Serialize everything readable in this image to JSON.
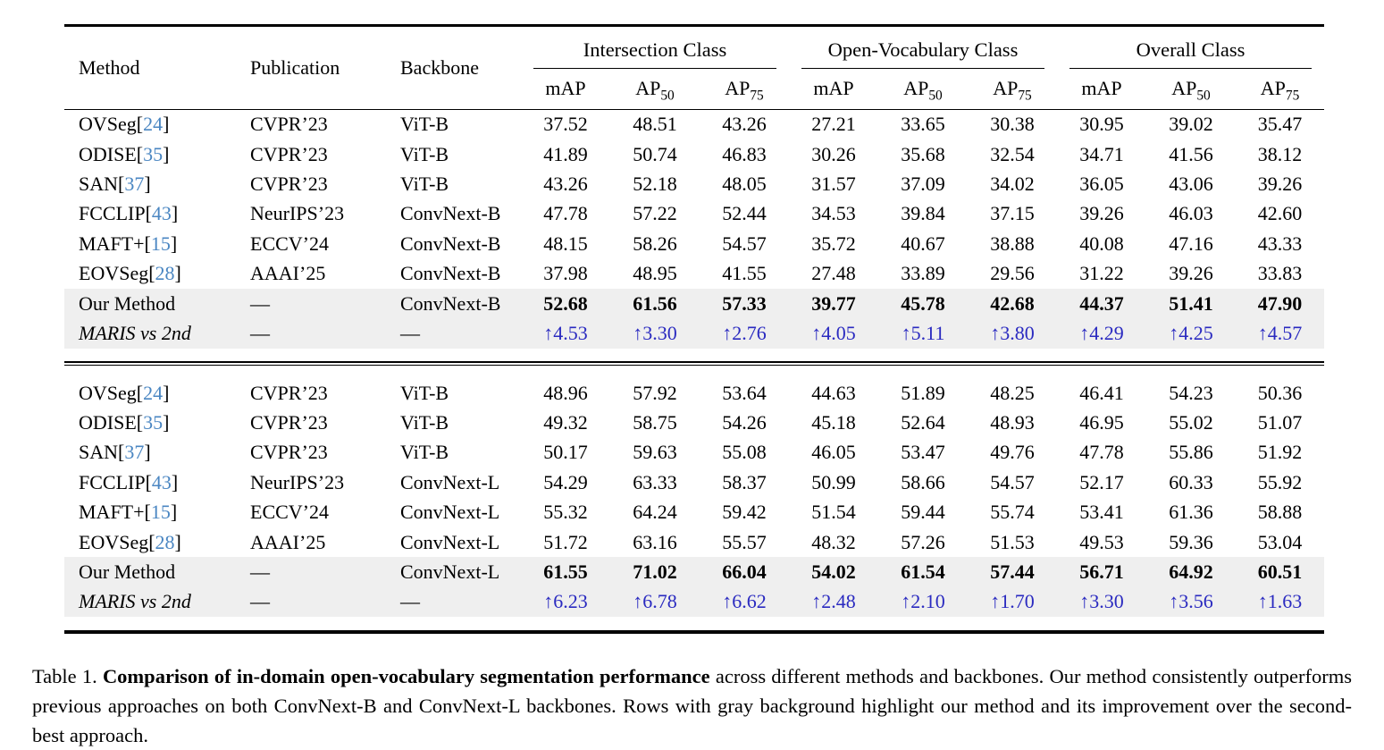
{
  "colors": {
    "citation_blue": "#4a86c2",
    "improvement_blue": "#2a2ac0",
    "highlight_gray": "#efefef"
  },
  "paper_table": {
    "columns": [
      "Method",
      "Publication",
      "Backbone"
    ],
    "group_headers": [
      {
        "label": "Intersection Class"
      },
      {
        "label": "Open-Vocabulary Class"
      },
      {
        "label": "Overall Class"
      }
    ],
    "metric_headers": [
      {
        "label": "mAP",
        "sub": ""
      },
      {
        "label": "AP",
        "sub": "50"
      },
      {
        "label": "AP",
        "sub": "75"
      }
    ],
    "sections": [
      {
        "rows": [
          {
            "method": "OVSeg",
            "cite": "24",
            "publication": "CVPR’23",
            "backbone": "ViT-B",
            "style": "normal",
            "values": [
              "37.52",
              "48.51",
              "43.26",
              "27.21",
              "33.65",
              "30.38",
              "30.95",
              "39.02",
              "35.47"
            ]
          },
          {
            "method": "ODISE",
            "cite": "35",
            "publication": "CVPR’23",
            "backbone": "ViT-B",
            "style": "normal",
            "values": [
              "41.89",
              "50.74",
              "46.83",
              "30.26",
              "35.68",
              "32.54",
              "34.71",
              "41.56",
              "38.12"
            ]
          },
          {
            "method": "SAN",
            "cite": "37",
            "publication": "CVPR’23",
            "backbone": "ViT-B",
            "style": "normal",
            "values": [
              "43.26",
              "52.18",
              "48.05",
              "31.57",
              "37.09",
              "34.02",
              "36.05",
              "43.06",
              "39.26"
            ]
          },
          {
            "method": "FCCLIP",
            "cite": "43",
            "publication": "NeurIPS’23",
            "backbone": "ConvNext-B",
            "style": "normal",
            "values": [
              "47.78",
              "57.22",
              "52.44",
              "34.53",
              "39.84",
              "37.15",
              "39.26",
              "46.03",
              "42.60"
            ]
          },
          {
            "method": "MAFT+",
            "cite": "15",
            "publication": "ECCV’24",
            "backbone": "ConvNext-B",
            "style": "normal",
            "values": [
              "48.15",
              "58.26",
              "54.57",
              "35.72",
              "40.67",
              "38.88",
              "40.08",
              "47.16",
              "43.33"
            ]
          },
          {
            "method": "EOVSeg",
            "cite": "28",
            "publication": "AAAI’25",
            "backbone": "ConvNext-B",
            "style": "normal",
            "values": [
              "37.98",
              "48.95",
              "41.55",
              "27.48",
              "33.89",
              "29.56",
              "31.22",
              "39.26",
              "33.83"
            ]
          },
          {
            "method": "Our Method",
            "cite": null,
            "publication": "—",
            "backbone": "ConvNext-B",
            "style": "ours",
            "values": [
              "52.68",
              "61.56",
              "57.33",
              "39.77",
              "45.78",
              "42.68",
              "44.37",
              "51.41",
              "47.90"
            ]
          },
          {
            "method": "MARIS vs 2nd",
            "cite": null,
            "publication": "—",
            "backbone": "—",
            "style": "delta",
            "values": [
              "↑4.53",
              "↑3.30",
              "↑2.76",
              "↑4.05",
              "↑5.11",
              "↑3.80",
              "↑4.29",
              "↑4.25",
              "↑4.57"
            ]
          }
        ]
      },
      {
        "rows": [
          {
            "method": "OVSeg",
            "cite": "24",
            "publication": "CVPR’23",
            "backbone": "ViT-B",
            "style": "normal",
            "values": [
              "48.96",
              "57.92",
              "53.64",
              "44.63",
              "51.89",
              "48.25",
              "46.41",
              "54.23",
              "50.36"
            ]
          },
          {
            "method": "ODISE",
            "cite": "35",
            "publication": "CVPR’23",
            "backbone": "ViT-B",
            "style": "normal",
            "values": [
              "49.32",
              "58.75",
              "54.26",
              "45.18",
              "52.64",
              "48.93",
              "46.95",
              "55.02",
              "51.07"
            ]
          },
          {
            "method": "SAN",
            "cite": "37",
            "publication": "CVPR’23",
            "backbone": "ViT-B",
            "style": "normal",
            "values": [
              "50.17",
              "59.63",
              "55.08",
              "46.05",
              "53.47",
              "49.76",
              "47.78",
              "55.86",
              "51.92"
            ]
          },
          {
            "method": "FCCLIP",
            "cite": "43",
            "publication": "NeurIPS’23",
            "backbone": "ConvNext-L",
            "style": "normal",
            "values": [
              "54.29",
              "63.33",
              "58.37",
              "50.99",
              "58.66",
              "54.57",
              "52.17",
              "60.33",
              "55.92"
            ]
          },
          {
            "method": "MAFT+",
            "cite": "15",
            "publication": "ECCV’24",
            "backbone": "ConvNext-L",
            "style": "normal",
            "values": [
              "55.32",
              "64.24",
              "59.42",
              "51.54",
              "59.44",
              "55.74",
              "53.41",
              "61.36",
              "58.88"
            ]
          },
          {
            "method": "EOVSeg",
            "cite": "28",
            "publication": "AAAI’25",
            "backbone": "ConvNext-L",
            "style": "normal",
            "values": [
              "51.72",
              "63.16",
              "55.57",
              "48.32",
              "57.26",
              "51.53",
              "49.53",
              "59.36",
              "53.04"
            ]
          },
          {
            "method": "Our Method",
            "cite": null,
            "publication": "—",
            "backbone": "ConvNext-L",
            "style": "ours",
            "values": [
              "61.55",
              "71.02",
              "66.04",
              "54.02",
              "61.54",
              "57.44",
              "56.71",
              "64.92",
              "60.51"
            ]
          },
          {
            "method": "MARIS vs 2nd",
            "cite": null,
            "publication": "—",
            "backbone": "—",
            "style": "delta",
            "values": [
              "↑6.23",
              "↑6.78",
              "↑6.62",
              "↑2.48",
              "↑2.10",
              "↑1.70",
              "↑3.30",
              "↑3.56",
              "↑1.63"
            ]
          }
        ]
      }
    ],
    "caption": {
      "prefix": "Table 1.",
      "bold": "Comparison of in-domain open-vocabulary segmentation performance",
      "rest": "across different methods and backbones. Our method consistently outperforms previous approaches on both ConvNext-B and ConvNext-L backbones. Rows with gray background highlight our method and its improvement over the second-best approach."
    }
  }
}
